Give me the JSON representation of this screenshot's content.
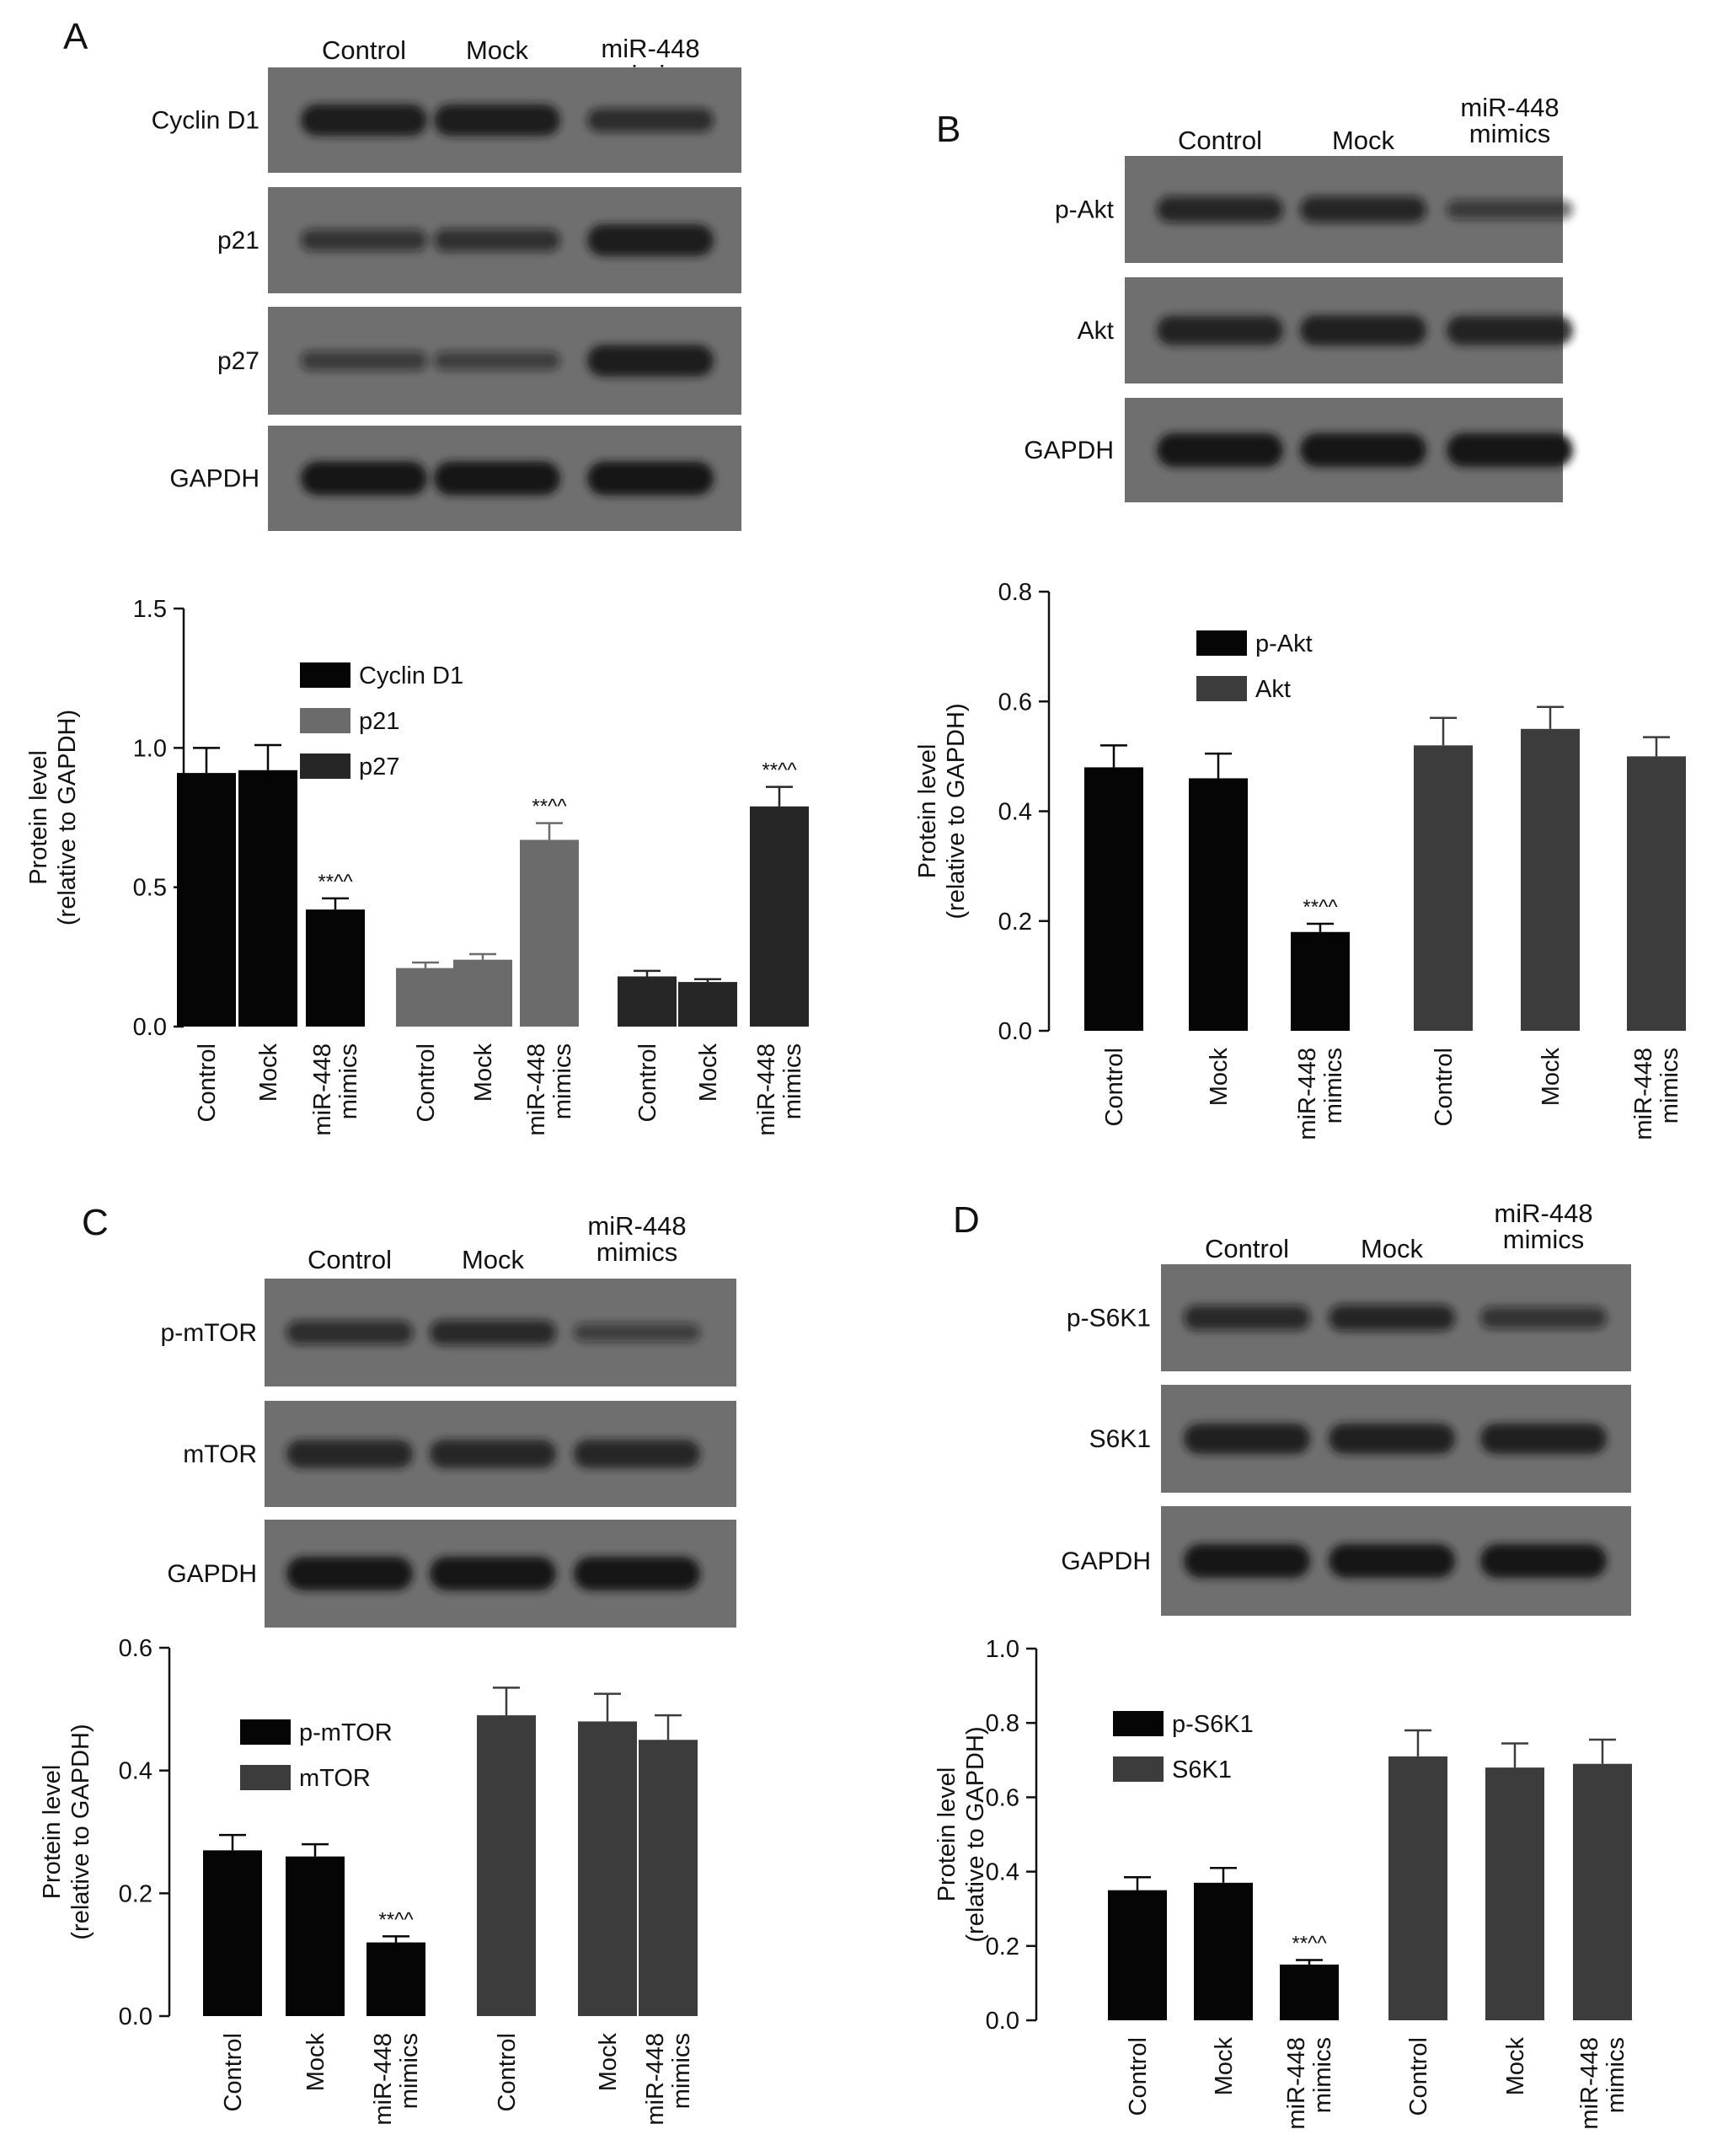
{
  "colors": {
    "blot_background": "#6f6f6f",
    "band": "#141414",
    "bar_black": "#050505",
    "bar_gray": "#6b6b6b",
    "bar_dark": "#262626",
    "bar_charcoal": "#3c3c3c"
  },
  "significance_marker": "**^^",
  "panels": [
    {
      "letter": "A",
      "lanes": [
        {
          "lines": [
            "Control"
          ]
        },
        {
          "lines": [
            "Mock"
          ]
        },
        {
          "lines": [
            "miR-448",
            "mimics"
          ]
        }
      ],
      "blots": [
        {
          "label": "Cyclin D1",
          "intensity": [
            0.9,
            0.9,
            0.55
          ]
        },
        {
          "label": "p21",
          "intensity": [
            0.45,
            0.5,
            0.9
          ]
        },
        {
          "label": "p27",
          "intensity": [
            0.35,
            0.3,
            0.9
          ]
        },
        {
          "label": "GAPDH",
          "intensity": [
            1.0,
            1.0,
            1.0
          ]
        }
      ]
    },
    {
      "letter": "B",
      "lanes": [
        {
          "lines": [
            "Control"
          ]
        },
        {
          "lines": [
            "Mock"
          ]
        },
        {
          "lines": [
            "miR-448",
            "mimics"
          ]
        }
      ],
      "blots": [
        {
          "label": "p-Akt",
          "intensity": [
            0.65,
            0.65,
            0.35
          ]
        },
        {
          "label": "Akt",
          "intensity": [
            0.8,
            0.85,
            0.8
          ]
        },
        {
          "label": "GAPDH",
          "intensity": [
            1.0,
            1.0,
            1.0
          ]
        }
      ]
    },
    {
      "letter": "C",
      "lanes": [
        {
          "lines": [
            "Control"
          ]
        },
        {
          "lines": [
            "Mock"
          ]
        },
        {
          "lines": [
            "miR-448",
            "mimics"
          ]
        }
      ],
      "blots": [
        {
          "label": "p-mTOR",
          "intensity": [
            0.55,
            0.6,
            0.3
          ]
        },
        {
          "label": "mTOR",
          "intensity": [
            0.75,
            0.75,
            0.75
          ]
        },
        {
          "label": "GAPDH",
          "intensity": [
            1.0,
            1.0,
            1.0
          ]
        }
      ]
    },
    {
      "letter": "D",
      "lanes": [
        {
          "lines": [
            "Control"
          ]
        },
        {
          "lines": [
            "Mock"
          ]
        },
        {
          "lines": [
            "miR-448",
            "mimics"
          ]
        }
      ],
      "blots": [
        {
          "label": "p-S6K1",
          "intensity": [
            0.6,
            0.65,
            0.45
          ]
        },
        {
          "label": "S6K1",
          "intensity": [
            0.85,
            0.85,
            0.85
          ]
        },
        {
          "label": "GAPDH",
          "intensity": [
            1.0,
            1.0,
            1.0
          ]
        }
      ]
    }
  ],
  "chart_data": [
    {
      "panel": "A",
      "type": "bar",
      "ylabel": [
        "Protein level",
        "(relative to GAPDH)"
      ],
      "ylim": [
        0,
        1.5
      ],
      "yticks": [
        "0.0",
        "0.5",
        "1.0",
        "1.5"
      ],
      "yticks_values": [
        0,
        0.5,
        1.0,
        1.5
      ],
      "categories": [
        [
          "Control"
        ],
        [
          "Mock"
        ],
        [
          "miR-448",
          "mimics"
        ]
      ],
      "legend_position": "upper-middle",
      "series": [
        {
          "name": "Cyclin D1",
          "color": "#050505",
          "values": [
            0.91,
            0.92,
            0.42
          ],
          "errors": [
            0.09,
            0.09,
            0.04
          ],
          "significant": [
            false,
            false,
            true
          ]
        },
        {
          "name": "p21",
          "color": "#6b6b6b",
          "values": [
            0.21,
            0.24,
            0.67
          ],
          "errors": [
            0.02,
            0.02,
            0.06
          ],
          "significant": [
            false,
            false,
            true
          ]
        },
        {
          "name": "p27",
          "color": "#262626",
          "values": [
            0.18,
            0.16,
            0.79
          ],
          "errors": [
            0.02,
            0.01,
            0.07
          ],
          "significant": [
            false,
            false,
            true
          ]
        }
      ]
    },
    {
      "panel": "B",
      "type": "bar",
      "ylabel": [
        "Protein level",
        "(relative to GAPDH)"
      ],
      "ylim": [
        0,
        0.8
      ],
      "yticks": [
        "0.0",
        "0.2",
        "0.4",
        "0.6",
        "0.8"
      ],
      "yticks_values": [
        0,
        0.2,
        0.4,
        0.6,
        0.8
      ],
      "categories": [
        [
          "Control"
        ],
        [
          "Mock"
        ],
        [
          "miR-448",
          "mimics"
        ]
      ],
      "legend_position": "upper-middle",
      "series": [
        {
          "name": "p-Akt",
          "color": "#050505",
          "values": [
            0.48,
            0.46,
            0.18
          ],
          "errors": [
            0.04,
            0.045,
            0.015
          ],
          "significant": [
            false,
            false,
            true
          ]
        },
        {
          "name": "Akt",
          "color": "#3c3c3c",
          "values": [
            0.52,
            0.55,
            0.5
          ],
          "errors": [
            0.05,
            0.04,
            0.035
          ],
          "significant": [
            false,
            false,
            false
          ]
        }
      ]
    },
    {
      "panel": "C",
      "type": "bar",
      "ylabel": [
        "Protein level",
        "(relative to GAPDH)"
      ],
      "ylim": [
        0,
        0.6
      ],
      "yticks": [
        "0.0",
        "0.2",
        "0.4",
        "0.6"
      ],
      "yticks_values": [
        0,
        0.2,
        0.4,
        0.6
      ],
      "categories": [
        [
          "Control"
        ],
        [
          "Mock"
        ],
        [
          "miR-448",
          "mimics"
        ]
      ],
      "legend_position": "upper-middle",
      "series": [
        {
          "name": "p-mTOR",
          "color": "#050505",
          "values": [
            0.27,
            0.26,
            0.12
          ],
          "errors": [
            0.025,
            0.02,
            0.01
          ],
          "significant": [
            false,
            false,
            true
          ]
        },
        {
          "name": "mTOR",
          "color": "#3c3c3c",
          "values": [
            0.49,
            0.48,
            0.45
          ],
          "errors": [
            0.045,
            0.045,
            0.04
          ],
          "significant": [
            false,
            false,
            false
          ]
        }
      ]
    },
    {
      "panel": "D",
      "type": "bar",
      "ylabel": [
        "Protein level",
        "(relative to GAPDH)"
      ],
      "ylim": [
        0,
        1.0
      ],
      "yticks": [
        "0.0",
        "0.2",
        "0.4",
        "0.6",
        "0.8",
        "1.0"
      ],
      "yticks_values": [
        0,
        0.2,
        0.4,
        0.6,
        0.8,
        1.0
      ],
      "categories": [
        [
          "Control"
        ],
        [
          "Mock"
        ],
        [
          "miR-448",
          "mimics"
        ]
      ],
      "legend_position": "upper-left",
      "series": [
        {
          "name": "p-S6K1",
          "color": "#050505",
          "values": [
            0.35,
            0.37,
            0.15
          ],
          "errors": [
            0.035,
            0.04,
            0.012
          ],
          "significant": [
            false,
            false,
            true
          ]
        },
        {
          "name": "S6K1",
          "color": "#3c3c3c",
          "values": [
            0.71,
            0.68,
            0.69
          ],
          "errors": [
            0.07,
            0.065,
            0.065
          ],
          "significant": [
            false,
            false,
            false
          ]
        }
      ]
    }
  ]
}
